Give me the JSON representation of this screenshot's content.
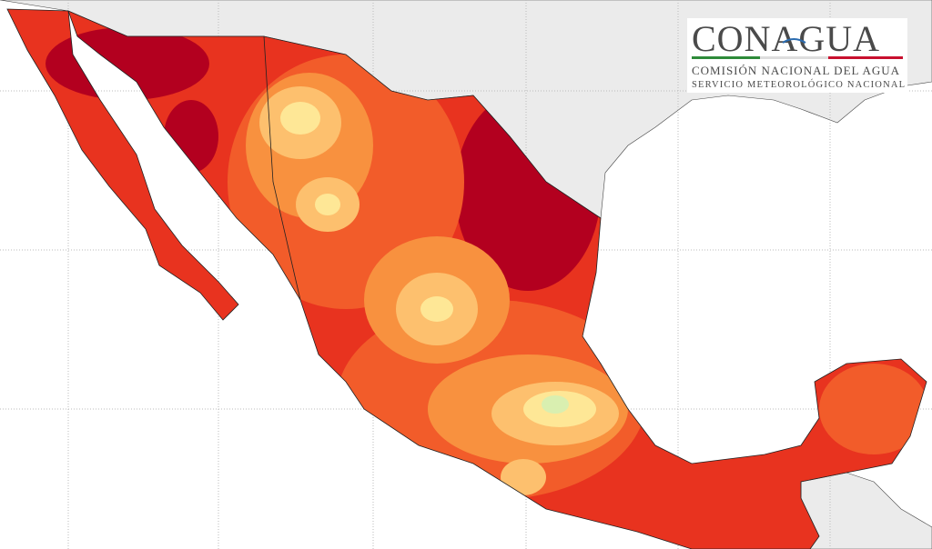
{
  "logo": {
    "title": "CONAGUA",
    "line1": "COMISIÓN NACIONAL DEL AGUA",
    "line2": "SERVICIO METEOROLÓGICO NACIONAL"
  }
}
